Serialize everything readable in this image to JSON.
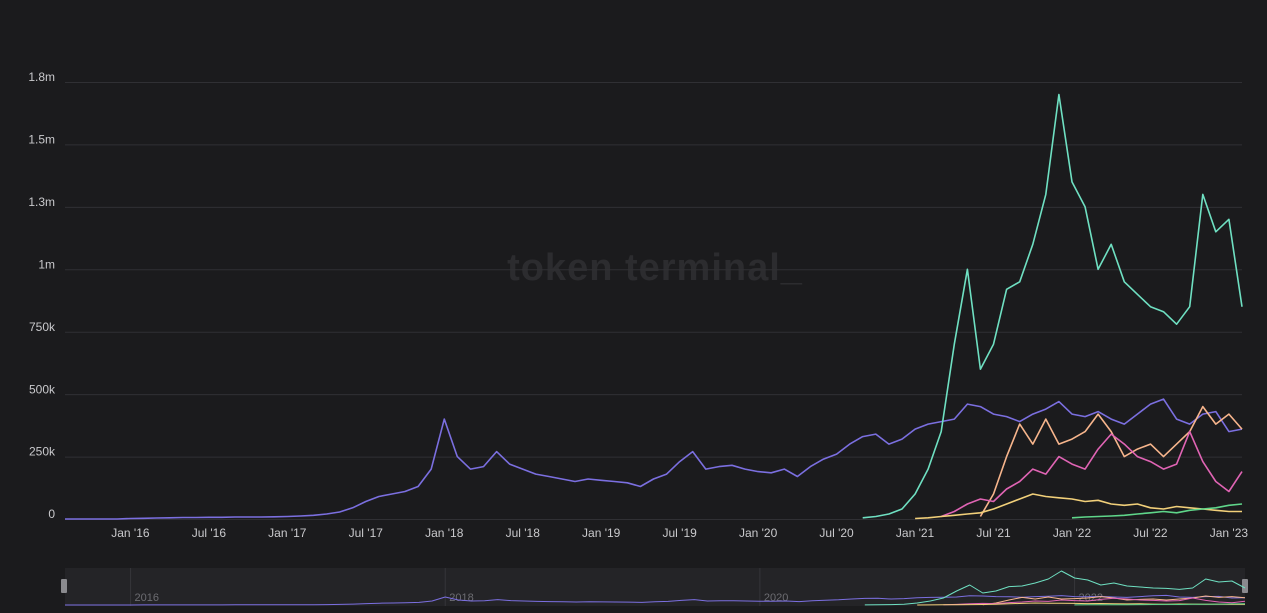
{
  "chart_data": {
    "type": "line",
    "watermark": "token terminal_",
    "x": [
      "2015-08",
      "2015-09",
      "2015-10",
      "2015-11",
      "2015-12",
      "2016-01",
      "2016-02",
      "2016-03",
      "2016-04",
      "2016-05",
      "2016-06",
      "2016-07",
      "2016-08",
      "2016-09",
      "2016-10",
      "2016-11",
      "2016-12",
      "2017-01",
      "2017-02",
      "2017-03",
      "2017-04",
      "2017-05",
      "2017-06",
      "2017-07",
      "2017-08",
      "2017-09",
      "2017-10",
      "2017-11",
      "2017-12",
      "2018-01",
      "2018-02",
      "2018-03",
      "2018-04",
      "2018-05",
      "2018-06",
      "2018-07",
      "2018-08",
      "2018-09",
      "2018-10",
      "2018-11",
      "2018-12",
      "2019-01",
      "2019-02",
      "2019-03",
      "2019-04",
      "2019-05",
      "2019-06",
      "2019-07",
      "2019-08",
      "2019-09",
      "2019-10",
      "2019-11",
      "2019-12",
      "2020-01",
      "2020-02",
      "2020-03",
      "2020-04",
      "2020-05",
      "2020-06",
      "2020-07",
      "2020-08",
      "2020-09",
      "2020-10",
      "2020-11",
      "2020-12",
      "2021-01",
      "2021-02",
      "2021-03",
      "2021-04",
      "2021-05",
      "2021-06",
      "2021-07",
      "2021-08",
      "2021-09",
      "2021-10",
      "2021-11",
      "2021-12",
      "2022-01",
      "2022-02",
      "2022-03",
      "2022-04",
      "2022-05",
      "2022-06",
      "2022-07",
      "2022-08",
      "2022-09",
      "2022-10",
      "2022-11",
      "2022-12",
      "2023-01",
      "2023-02"
    ],
    "series": [
      {
        "color": "#7b6fe0",
        "values": [
          0,
          0,
          0,
          0,
          0,
          2000,
          3000,
          4000,
          5000,
          6000,
          6000,
          7000,
          7000,
          8000,
          8000,
          8000,
          9000,
          10000,
          12000,
          15000,
          20000,
          28000,
          45000,
          70000,
          90000,
          100000,
          110000,
          130000,
          200000,
          400000,
          250000,
          200000,
          210000,
          270000,
          220000,
          200000,
          180000,
          170000,
          160000,
          150000,
          160000,
          155000,
          150000,
          145000,
          130000,
          160000,
          180000,
          230000,
          270000,
          200000,
          210000,
          215000,
          200000,
          190000,
          185000,
          200000,
          170000,
          210000,
          240000,
          260000,
          300000,
          330000,
          340000,
          300000,
          320000,
          360000,
          380000,
          390000,
          400000,
          460000,
          450000,
          420000,
          410000,
          390000,
          420000,
          440000,
          470000,
          420000,
          410000,
          430000,
          400000,
          380000,
          420000,
          460000,
          480000,
          400000,
          380000,
          420000,
          430000,
          350000,
          360000
        ]
      },
      {
        "color": "#6fe0c2",
        "values": [
          null,
          null,
          null,
          null,
          null,
          null,
          null,
          null,
          null,
          null,
          null,
          null,
          null,
          null,
          null,
          null,
          null,
          null,
          null,
          null,
          null,
          null,
          null,
          null,
          null,
          null,
          null,
          null,
          null,
          null,
          null,
          null,
          null,
          null,
          null,
          null,
          null,
          null,
          null,
          null,
          null,
          null,
          null,
          null,
          null,
          null,
          null,
          null,
          null,
          null,
          null,
          null,
          null,
          null,
          null,
          null,
          null,
          null,
          null,
          null,
          null,
          5000,
          10000,
          20000,
          40000,
          100000,
          200000,
          350000,
          700000,
          1000000,
          600000,
          700000,
          920000,
          950000,
          1100000,
          1300000,
          1700000,
          1350000,
          1250000,
          1000000,
          1100000,
          950000,
          900000,
          850000,
          830000,
          780000,
          850000,
          1300000,
          1150000,
          1200000,
          850000
        ]
      },
      {
        "color": "#f7b58c",
        "values": [
          null,
          null,
          null,
          null,
          null,
          null,
          null,
          null,
          null,
          null,
          null,
          null,
          null,
          null,
          null,
          null,
          null,
          null,
          null,
          null,
          null,
          null,
          null,
          null,
          null,
          null,
          null,
          null,
          null,
          null,
          null,
          null,
          null,
          null,
          null,
          null,
          null,
          null,
          null,
          null,
          null,
          null,
          null,
          null,
          null,
          null,
          null,
          null,
          null,
          null,
          null,
          null,
          null,
          null,
          null,
          null,
          null,
          null,
          null,
          null,
          null,
          null,
          null,
          null,
          null,
          null,
          null,
          null,
          null,
          null,
          10000,
          100000,
          250000,
          380000,
          300000,
          400000,
          300000,
          320000,
          350000,
          420000,
          350000,
          250000,
          280000,
          300000,
          250000,
          300000,
          350000,
          450000,
          380000,
          420000,
          360000
        ]
      },
      {
        "color": "#e064b4",
        "values": [
          null,
          null,
          null,
          null,
          null,
          null,
          null,
          null,
          null,
          null,
          null,
          null,
          null,
          null,
          null,
          null,
          null,
          null,
          null,
          null,
          null,
          null,
          null,
          null,
          null,
          null,
          null,
          null,
          null,
          null,
          null,
          null,
          null,
          null,
          null,
          null,
          null,
          null,
          null,
          null,
          null,
          null,
          null,
          null,
          null,
          null,
          null,
          null,
          null,
          null,
          null,
          null,
          null,
          null,
          null,
          null,
          null,
          null,
          null,
          null,
          null,
          null,
          null,
          null,
          null,
          null,
          null,
          10000,
          30000,
          60000,
          80000,
          70000,
          120000,
          150000,
          200000,
          180000,
          250000,
          220000,
          200000,
          280000,
          340000,
          300000,
          250000,
          230000,
          200000,
          220000,
          350000,
          230000,
          150000,
          110000,
          190000
        ]
      },
      {
        "color": "#f2d07a",
        "values": [
          null,
          null,
          null,
          null,
          null,
          null,
          null,
          null,
          null,
          null,
          null,
          null,
          null,
          null,
          null,
          null,
          null,
          null,
          null,
          null,
          null,
          null,
          null,
          null,
          null,
          null,
          null,
          null,
          null,
          null,
          null,
          null,
          null,
          null,
          null,
          null,
          null,
          null,
          null,
          null,
          null,
          null,
          null,
          null,
          null,
          null,
          null,
          null,
          null,
          null,
          null,
          null,
          null,
          null,
          null,
          null,
          null,
          null,
          null,
          null,
          null,
          null,
          null,
          null,
          null,
          2000,
          5000,
          10000,
          15000,
          20000,
          25000,
          40000,
          60000,
          80000,
          100000,
          90000,
          85000,
          80000,
          70000,
          75000,
          60000,
          55000,
          60000,
          45000,
          40000,
          50000,
          45000,
          40000,
          35000,
          30000,
          30000
        ]
      },
      {
        "color": "#5fd68a",
        "values": [
          null,
          null,
          null,
          null,
          null,
          null,
          null,
          null,
          null,
          null,
          null,
          null,
          null,
          null,
          null,
          null,
          null,
          null,
          null,
          null,
          null,
          null,
          null,
          null,
          null,
          null,
          null,
          null,
          null,
          null,
          null,
          null,
          null,
          null,
          null,
          null,
          null,
          null,
          null,
          null,
          null,
          null,
          null,
          null,
          null,
          null,
          null,
          null,
          null,
          null,
          null,
          null,
          null,
          null,
          null,
          null,
          null,
          null,
          null,
          null,
          null,
          null,
          null,
          null,
          null,
          null,
          null,
          null,
          null,
          null,
          null,
          null,
          null,
          null,
          null,
          null,
          null,
          5000,
          8000,
          10000,
          12000,
          15000,
          20000,
          25000,
          30000,
          25000,
          35000,
          40000,
          45000,
          55000,
          60000
        ]
      }
    ],
    "xlim": [
      "2015-08",
      "2023-02"
    ],
    "xticks": [
      {
        "value": "2016-01",
        "label": "Jan '16"
      },
      {
        "value": "2016-07",
        "label": "Jul '16"
      },
      {
        "value": "2017-01",
        "label": "Jan '17"
      },
      {
        "value": "2017-07",
        "label": "Jul '17"
      },
      {
        "value": "2018-01",
        "label": "Jan '18"
      },
      {
        "value": "2018-07",
        "label": "Jul '18"
      },
      {
        "value": "2019-01",
        "label": "Jan '19"
      },
      {
        "value": "2019-07",
        "label": "Jul '19"
      },
      {
        "value": "2020-01",
        "label": "Jan '20"
      },
      {
        "value": "2020-07",
        "label": "Jul '20"
      },
      {
        "value": "2021-01",
        "label": "Jan '21"
      },
      {
        "value": "2021-07",
        "label": "Jul '21"
      },
      {
        "value": "2022-01",
        "label": "Jan '22"
      },
      {
        "value": "2022-07",
        "label": "Jul '22"
      },
      {
        "value": "2023-01",
        "label": "Jan '23"
      }
    ],
    "ylim": [
      0,
      1750000
    ],
    "yticks": [
      0,
      {
        "value": 250000,
        "label": "250k"
      },
      {
        "value": 500000,
        "label": "500k"
      },
      {
        "value": 750000,
        "label": "750k"
      },
      {
        "value": 1000000,
        "label": "1m"
      },
      {
        "value": 1250000,
        "label": "1.3m"
      },
      {
        "value": 1500000,
        "label": "1.5m"
      },
      {
        "value": 1750000,
        "label": "1.8m"
      }
    ],
    "grid": true,
    "navigator_ticks": [
      {
        "value": "2016-01",
        "label": "2016"
      },
      {
        "value": "2018-01",
        "label": "2018"
      },
      {
        "value": "2020-01",
        "label": "2020"
      },
      {
        "value": "2022-01",
        "label": "2022"
      }
    ]
  }
}
